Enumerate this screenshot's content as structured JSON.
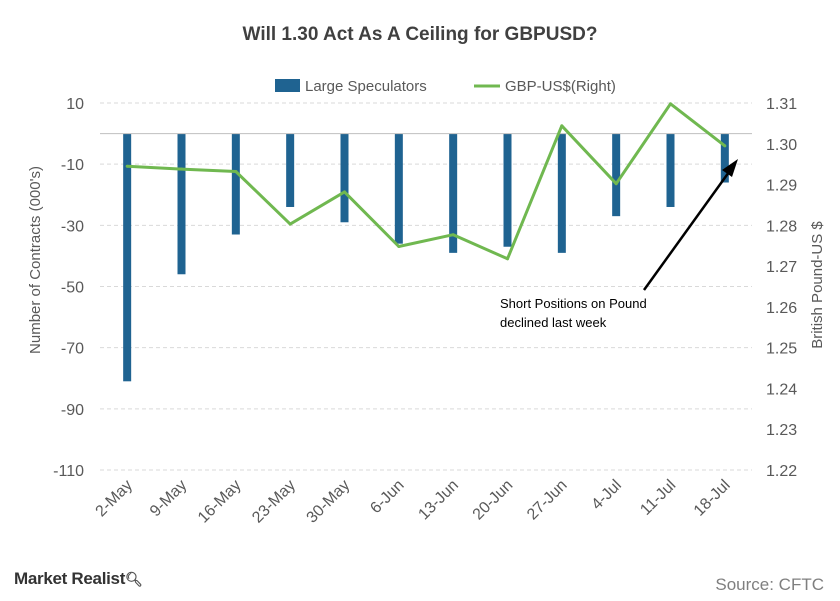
{
  "chart_data": {
    "type": "bar+line",
    "title": "Will 1.30 Act As A Ceiling for GBPUSD?",
    "categories": [
      "2-May",
      "9-May",
      "16-May",
      "23-May",
      "30-May",
      "6-Jun",
      "13-Jun",
      "20-Jun",
      "27-Jun",
      "4-Jul",
      "11-Jul",
      "18-Jul"
    ],
    "y_left": {
      "label": "Number of Contracts (000's)",
      "range": [
        -110,
        10
      ],
      "ticks": [
        "10",
        "-10",
        "-30",
        "-50",
        "-70",
        "-90",
        "-110"
      ]
    },
    "y_right": {
      "label": "British Pound-US $",
      "range": [
        1.22,
        1.31
      ],
      "ticks": [
        "1.31",
        "1.30",
        "1.29",
        "1.28",
        "1.27",
        "1.26",
        "1.25",
        "1.24",
        "1.23",
        "1.22"
      ]
    },
    "series": [
      {
        "name": "Large Speculators",
        "type": "bar",
        "axis": "left",
        "color": "#1f6391",
        "values": [
          -81,
          -46,
          -33,
          -24,
          -29,
          -36,
          -39,
          -37,
          -39,
          -27,
          -24,
          -16
        ]
      },
      {
        "name": "GBP-US$(Right)",
        "type": "line",
        "axis": "right",
        "color": "#70b850",
        "values": [
          1.2945,
          1.2938,
          1.2932,
          1.2803,
          1.2882,
          1.2748,
          1.2777,
          1.2718,
          1.3044,
          1.2902,
          1.3098,
          1.2995
        ]
      }
    ],
    "legend_position": "top-center",
    "grid": "horizontal dashed",
    "annotation": {
      "text_lines": [
        "Short Positions on Pound",
        "declined last week"
      ],
      "arrow_to": "18-Jul"
    }
  },
  "footer": {
    "brand": "Market Realist",
    "brand_icon": "magnifier-icon",
    "source": "Source: CFTC"
  }
}
